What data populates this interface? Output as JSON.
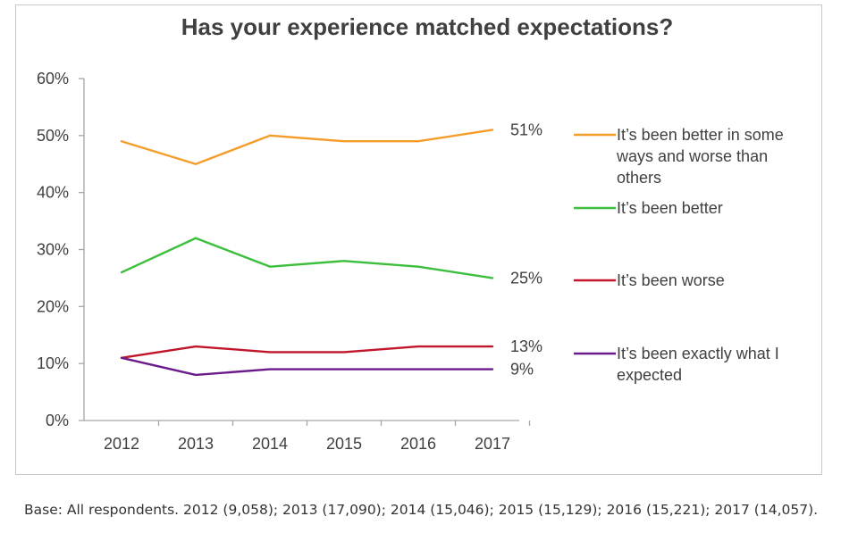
{
  "chart_data": {
    "type": "line",
    "title": "Has your experience matched expectations?",
    "x": [
      "2012",
      "2013",
      "2014",
      "2015",
      "2016",
      "2017"
    ],
    "ylim": [
      0,
      60
    ],
    "yticks": [
      "0%",
      "10%",
      "20%",
      "30%",
      "40%",
      "50%",
      "60%"
    ],
    "grid": false,
    "legend_position": "right",
    "series": [
      {
        "name": "It’s been better in some ways and worse than others",
        "legend_lines": [
          "It’s been better in some",
          "ways and worse than",
          "others"
        ],
        "values": [
          49,
          45,
          50,
          49,
          49,
          51
        ],
        "end_label": "51%",
        "color": "#f59d2a"
      },
      {
        "name": "It’s been better",
        "legend_lines": [
          "It’s been better"
        ],
        "values": [
          26,
          32,
          27,
          28,
          27,
          25
        ],
        "end_label": "25%",
        "color": "#3cbf3c"
      },
      {
        "name": "It’s been worse",
        "legend_lines": [
          "It’s been worse"
        ],
        "values": [
          11,
          13,
          12,
          12,
          13,
          13
        ],
        "end_label": "13%",
        "color": "#c0152a"
      },
      {
        "name": "It’s been exactly what I expected",
        "legend_lines": [
          "It’s been exactly what I",
          "expected"
        ],
        "values": [
          11,
          8,
          9,
          9,
          9,
          9
        ],
        "end_label": "9%",
        "color": "#6a1b8a"
      }
    ]
  },
  "footnote": "Base: All respondents. 2012 (9,058); 2013 (17,090); 2014 (15,046); 2015 (15,129); 2016 (15,221); 2017 (14,057)."
}
